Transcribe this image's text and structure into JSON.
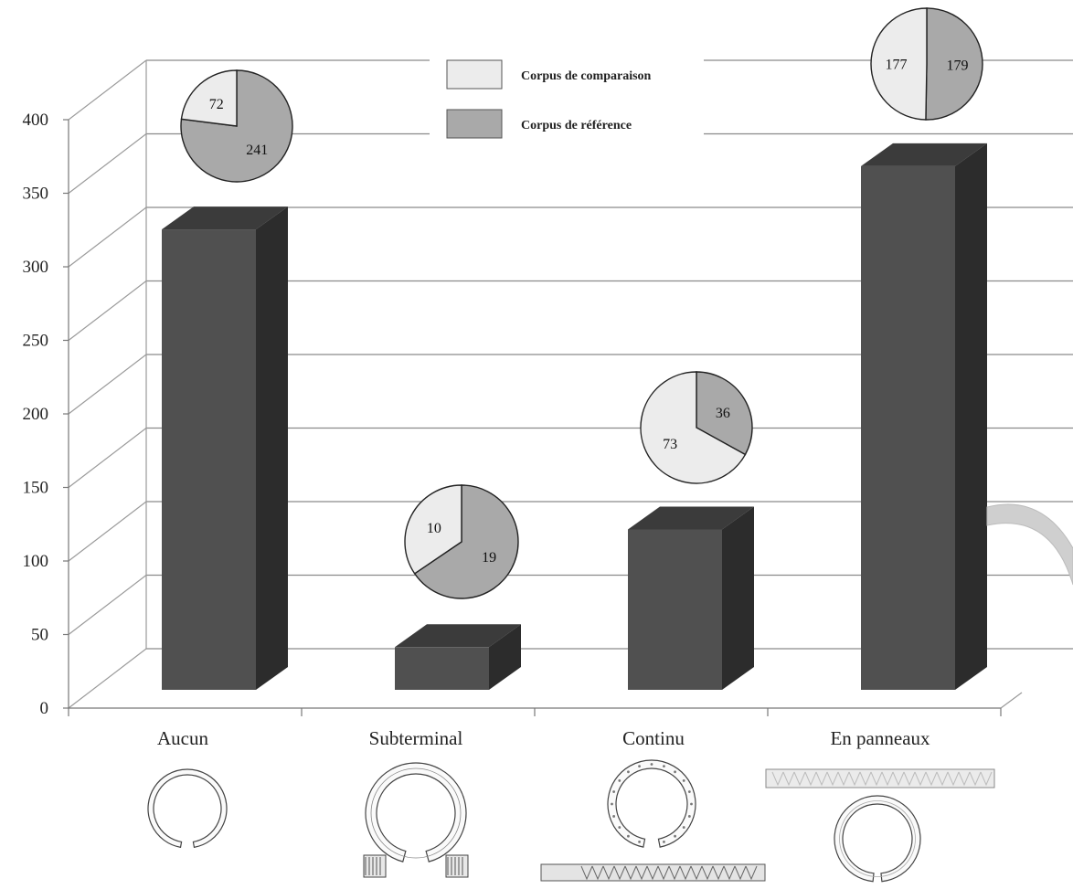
{
  "chart_data": {
    "type": "bar",
    "categories": [
      "Aucun",
      "Subterminal",
      "Continu",
      "En panneaux"
    ],
    "values": [
      313,
      29,
      109,
      356
    ],
    "ylim": [
      0,
      400
    ],
    "yticks": [
      "0",
      "50",
      "100",
      "150",
      "200",
      "250",
      "300",
      "350",
      "400"
    ],
    "grid": true,
    "legend": {
      "placement": "top-center",
      "entries": [
        {
          "label": "Corpus de comparaison",
          "color": "#ececec"
        },
        {
          "label": "Corpus de référence",
          "color": "#a9a9a9"
        }
      ]
    },
    "pies": [
      {
        "category": "Aucun",
        "comparaison": 72,
        "reference": 241
      },
      {
        "category": "Subterminal",
        "comparaison": 10,
        "reference": 19
      },
      {
        "category": "Continu",
        "comparaison": 73,
        "reference": 36
      },
      {
        "category": "En panneaux",
        "comparaison": 177,
        "reference": 179
      }
    ],
    "bar_color": "#505050"
  }
}
